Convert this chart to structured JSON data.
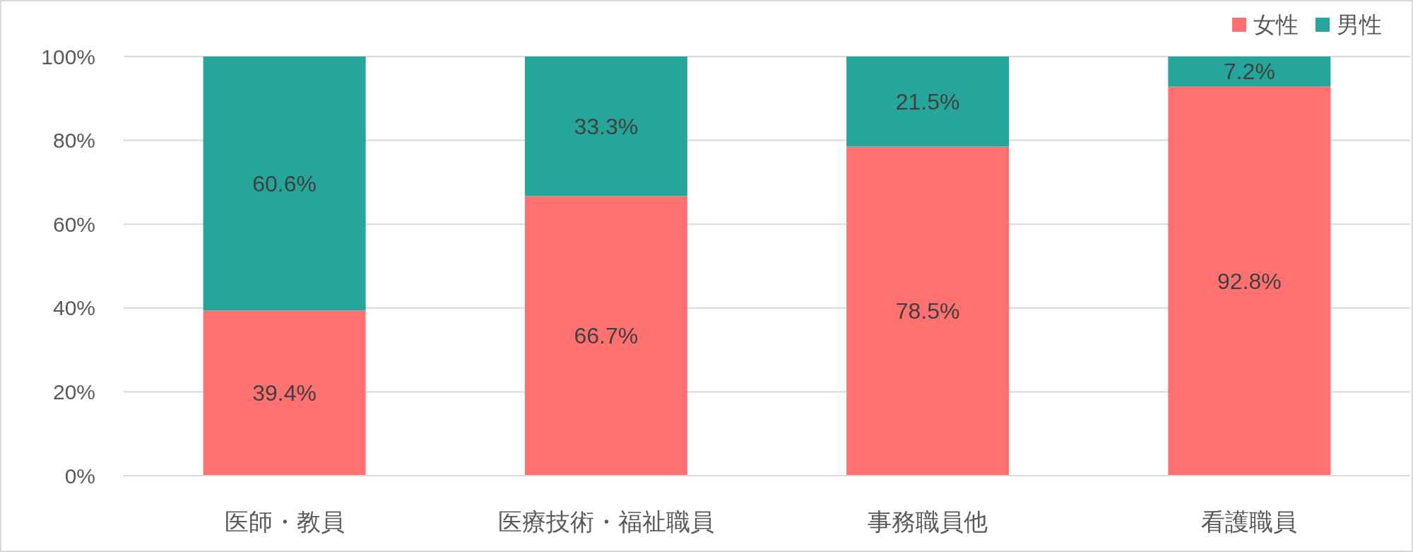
{
  "chart_data": {
    "type": "bar",
    "stacked": true,
    "categories": [
      "医師・教員",
      "医療技術・福祉職員",
      "事務職員他",
      "看護職員"
    ],
    "series": [
      {
        "name": "女性",
        "color": "#ff7070",
        "values": [
          39.4,
          66.7,
          78.5,
          92.8
        ],
        "value_labels": [
          "39.4%",
          "66.7%",
          "78.5%",
          "92.8%"
        ]
      },
      {
        "name": "男性",
        "color": "#26a69a",
        "values": [
          60.6,
          33.3,
          21.5,
          7.2
        ],
        "value_labels": [
          "60.6%",
          "33.3%",
          "21.5%",
          "7.2%"
        ]
      }
    ],
    "ylim": [
      0,
      100
    ],
    "yticks": [
      {
        "value": 0,
        "label": "0%"
      },
      {
        "value": 20,
        "label": "20%"
      },
      {
        "value": 40,
        "label": "40%"
      },
      {
        "value": 60,
        "label": "60%"
      },
      {
        "value": 80,
        "label": "80%"
      },
      {
        "value": 100,
        "label": "100%"
      }
    ],
    "grid": "y",
    "legend": "top right"
  }
}
